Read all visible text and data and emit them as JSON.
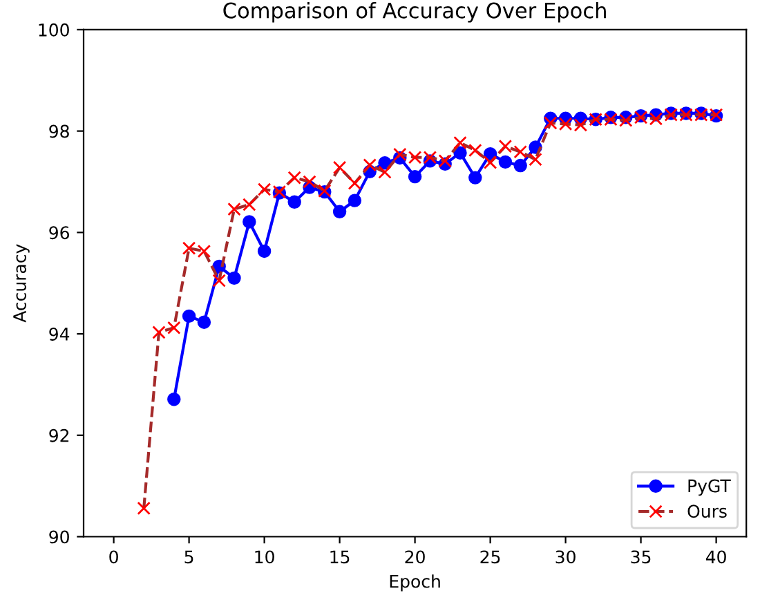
{
  "chart_data": {
    "type": "line",
    "title": "Comparison of Accuracy Over Epoch",
    "xlabel": "Epoch",
    "ylabel": "Accuracy",
    "x": [
      2,
      3,
      4,
      5,
      6,
      7,
      8,
      9,
      10,
      11,
      12,
      13,
      14,
      15,
      16,
      17,
      18,
      19,
      20,
      21,
      22,
      23,
      24,
      25,
      26,
      27,
      28,
      29,
      30,
      31,
      32,
      33,
      34,
      35,
      36,
      37,
      38,
      39,
      40
    ],
    "series": [
      {
        "name": "PyGT",
        "color": "#0000ff",
        "marker": "circle",
        "line_style": "solid",
        "values": [
          null,
          null,
          92.71,
          94.35,
          94.23,
          95.33,
          95.1,
          96.21,
          95.63,
          96.78,
          96.6,
          96.89,
          96.8,
          96.41,
          96.63,
          97.2,
          97.37,
          97.47,
          97.1,
          97.41,
          97.35,
          97.57,
          97.08,
          97.55,
          97.39,
          97.32,
          97.68,
          98.25,
          98.25,
          98.25,
          98.23,
          98.27,
          98.27,
          98.3,
          98.32,
          98.35,
          98.35,
          98.35,
          98.3
        ]
      },
      {
        "name": "Ours",
        "color": "#a52a2a",
        "marker": "cross",
        "line_style": "dashed",
        "values": [
          90.56,
          94.03,
          94.12,
          95.69,
          95.63,
          95.05,
          96.46,
          96.55,
          96.85,
          96.8,
          97.08,
          97.0,
          96.82,
          97.28,
          96.97,
          97.33,
          97.19,
          97.54,
          97.48,
          97.48,
          97.41,
          97.77,
          97.62,
          97.38,
          97.7,
          97.59,
          97.44,
          98.16,
          98.14,
          98.12,
          98.23,
          98.23,
          98.21,
          98.27,
          98.24,
          98.32,
          98.32,
          98.32,
          98.32
        ]
      }
    ],
    "xlim": [
      -2,
      42
    ],
    "xticks": [
      0,
      5,
      10,
      15,
      20,
      25,
      30,
      35,
      40
    ],
    "ylim": [
      90,
      100
    ],
    "yticks": [
      90,
      92,
      94,
      96,
      98,
      100
    ],
    "grid": false,
    "legend": "lower right"
  }
}
